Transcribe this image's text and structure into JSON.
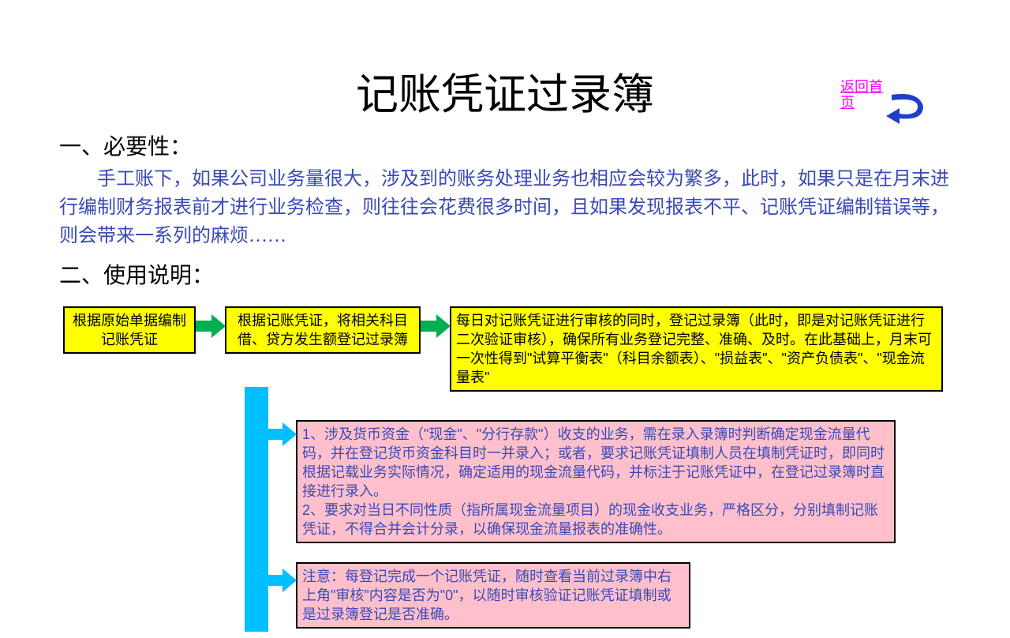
{
  "title": "记账凭证过录簿",
  "return_link": "返回首页",
  "section1": {
    "header": "一、必要性：",
    "paragraph": "手工账下，如果公司业务量很大，涉及到的账务处理业务也相应会较为繁多，此时，如果只是在月末进行编制财务报表前才进行业务检查，则往往会花费很多时间，且如果发现报表不平、记账凭证编制错误等，则会带来一系列的麻烦……"
  },
  "section2": {
    "header": "二、使用说明："
  },
  "boxes": {
    "box1": "根据原始单据编制记账凭证",
    "box2": "根据记账凭证，将相关科目借、贷方发生额登记过录簿",
    "box3": "每日对记账凭证进行审核的同时，登记过录簿（此时，即是对记账凭证进行二次验证审核），确保所有业务登记完整、准确、及时。在此基础上，月末可一次性得到\"试算平衡表\"（科目余额表）、\"损益表\"、\"资产负债表\"、\"现金流量表\"",
    "box4": "1、涉及货币资金（\"现金\"、\"分行存款\"）收支的业务，需在录入录簿时判断确定现金流量代码，并在登记货币资金科目时一并录入；或者，要求记账凭证填制人员在填制凭证时，即同时根据记载业务实际情况，确定适用的现金流量代码，并标注于记账凭证中，在登记过录簿时直接进行录入。\n2、要求对当日不同性质（指所属现金流量项目）的现金收支业务，严格区分，分别填制记账凭证，不得合并会计分录，以确保现金流量报表的准确性。",
    "box5": "注意：每登记完成一个记账凭证，随时查看当前过录簿中右上角\"审核\"内容是否为\"0\"，以随时审核验证记账凭证填制或是过录簿登记是否准确。"
  },
  "colors": {
    "title_color": "#000000",
    "text_blue": "#3a49b8",
    "link_magenta": "#ff00ff",
    "box_yellow": "#ffff00",
    "box_pink": "#ffc0cb",
    "arrow_green": "#00b050",
    "arrow_cyan": "#00bfff",
    "arrow_blue": "#1f3fc8"
  }
}
